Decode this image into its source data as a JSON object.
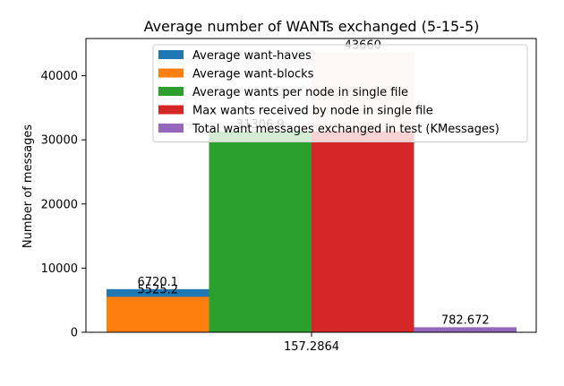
{
  "chart_data": {
    "type": "bar",
    "title": "Average number of WANTs exchanged (5-15-5)",
    "xlabel": "",
    "ylabel": "Number of messages",
    "categories": [
      "157.2864"
    ],
    "ylim": [
      0,
      45800
    ],
    "yticks": [
      0,
      10000,
      20000,
      30000,
      40000
    ],
    "ytick_labels": [
      "0",
      "10000",
      "20000",
      "30000",
      "40000"
    ],
    "grid": false,
    "legend_position": "top-right",
    "series": [
      {
        "name": "Average want-haves",
        "value": 6720.1,
        "label": "6720.1",
        "color": "#1f77b4",
        "stack": "Average want-blocks"
      },
      {
        "name": "Average want-blocks",
        "value": 5525.2,
        "label": "5525.2",
        "color": "#ff7f0e"
      },
      {
        "name": "Average wants per node in single file",
        "value": 31306.9,
        "label": "31306.9",
        "color": "#2ca02c"
      },
      {
        "name": "Max wants received by node in single file",
        "value": 43660,
        "label": "43660",
        "color": "#d62728"
      },
      {
        "name": "Total want messages exchanged in test (KMessages)",
        "value": 782.672,
        "label": "782.672",
        "color": "#9467bd"
      }
    ]
  }
}
